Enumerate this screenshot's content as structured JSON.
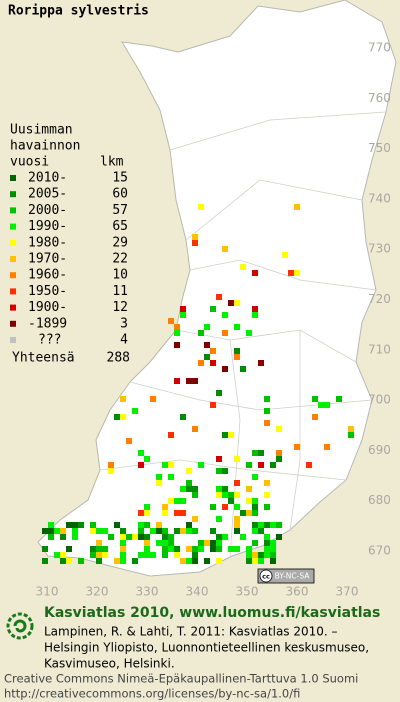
{
  "title": "Rorippa sylvestris",
  "legend": {
    "header": [
      "Uusimman",
      "havainnon",
      "vuosi"
    ],
    "count_header": "lkm",
    "rows": [
      {
        "label": "2010-",
        "count": 15,
        "color": "#006400"
      },
      {
        "label": "2005-",
        "count": 60,
        "color": "#008c00"
      },
      {
        "label": "2000-",
        "count": 57,
        "color": "#00c000"
      },
      {
        "label": "1990-",
        "count": 65,
        "color": "#00ee00"
      },
      {
        "label": "1980-",
        "count": 29,
        "color": "#ffff00"
      },
      {
        "label": "1970-",
        "count": 22,
        "color": "#ffc000"
      },
      {
        "label": "1960-",
        "count": 10,
        "color": "#ff8000"
      },
      {
        "label": "1950-",
        "count": 11,
        "color": "#ff3000"
      },
      {
        "label": "1900-",
        "count": 12,
        "color": "#d00000"
      },
      {
        "label": "-1899",
        "count": 3,
        "color": "#800000"
      },
      {
        "label": "???",
        "count": 4,
        "color": "#c0c0c0"
      }
    ],
    "total_label": "Yhteensä",
    "total": 288
  },
  "y_axis_labels": [
    "770",
    "760",
    "750",
    "740",
    "730",
    "720",
    "710",
    "700",
    "690",
    "680",
    "670"
  ],
  "x_axis_labels": [
    "310",
    "320",
    "330",
    "340",
    "350",
    "360",
    "370"
  ],
  "license_badge": {
    "icon": "cc",
    "text": "BY-NC-SA"
  },
  "footer": {
    "site": "Kasviatlas 2010, www.luomus.fi/kasviatlas",
    "citation": [
      "Lampinen, R. & Lahti, T. 2011: Kasviatlas 2010. –",
      "Helsingin Yliopisto, Luonnontieteellinen keskusmuseo,",
      "Kasvimuseo, Helsinki."
    ],
    "license": [
      "Creative Commons Nimeä-Epäkaupallinen-Tarttuva 1.0 Suomi",
      "http://creativecommons.org/licenses/by-nc-sa/1.0/fi"
    ]
  }
}
